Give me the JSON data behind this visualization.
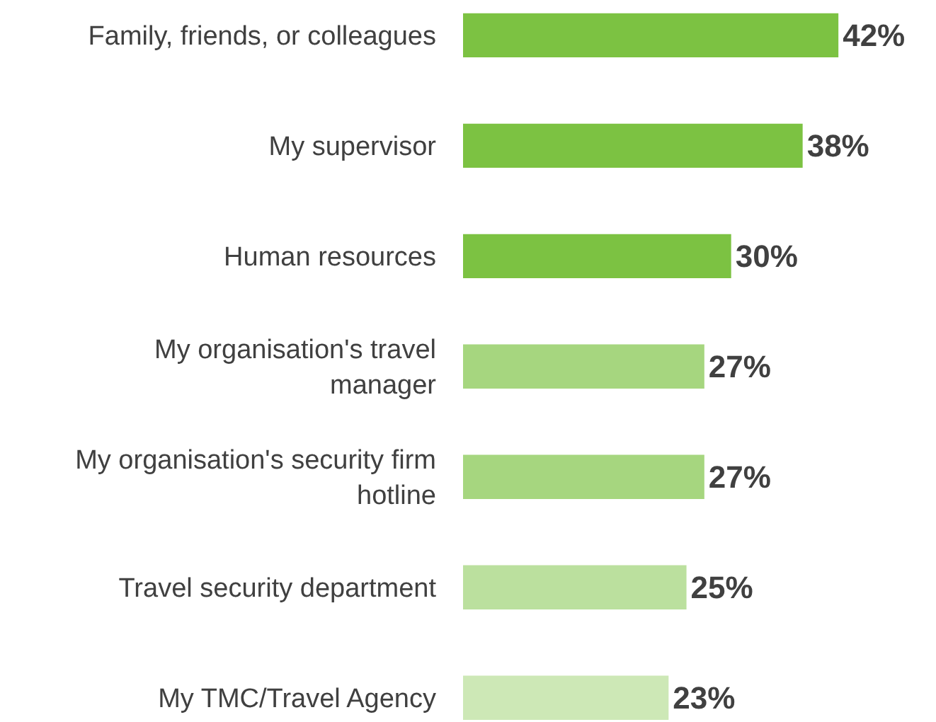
{
  "chart_data": {
    "type": "bar",
    "orientation": "horizontal",
    "categories": [
      "Family, friends, or colleagues",
      "My supervisor",
      "Human resources",
      "My organisation's travel\nmanager",
      "My organisation's security firm\nhotline",
      "Travel security department",
      "My TMC/Travel Agency"
    ],
    "values": [
      42,
      38,
      30,
      27,
      27,
      25,
      23
    ],
    "colors": [
      "#7cc242",
      "#7cc242",
      "#7cc242",
      "#a6d67f",
      "#a6d67f",
      "#bbe09e",
      "#cde8b6"
    ],
    "value_labels": [
      "42%",
      "38%",
      "30%",
      "27%",
      "27%",
      "25%",
      "23%"
    ],
    "legend": false
  }
}
